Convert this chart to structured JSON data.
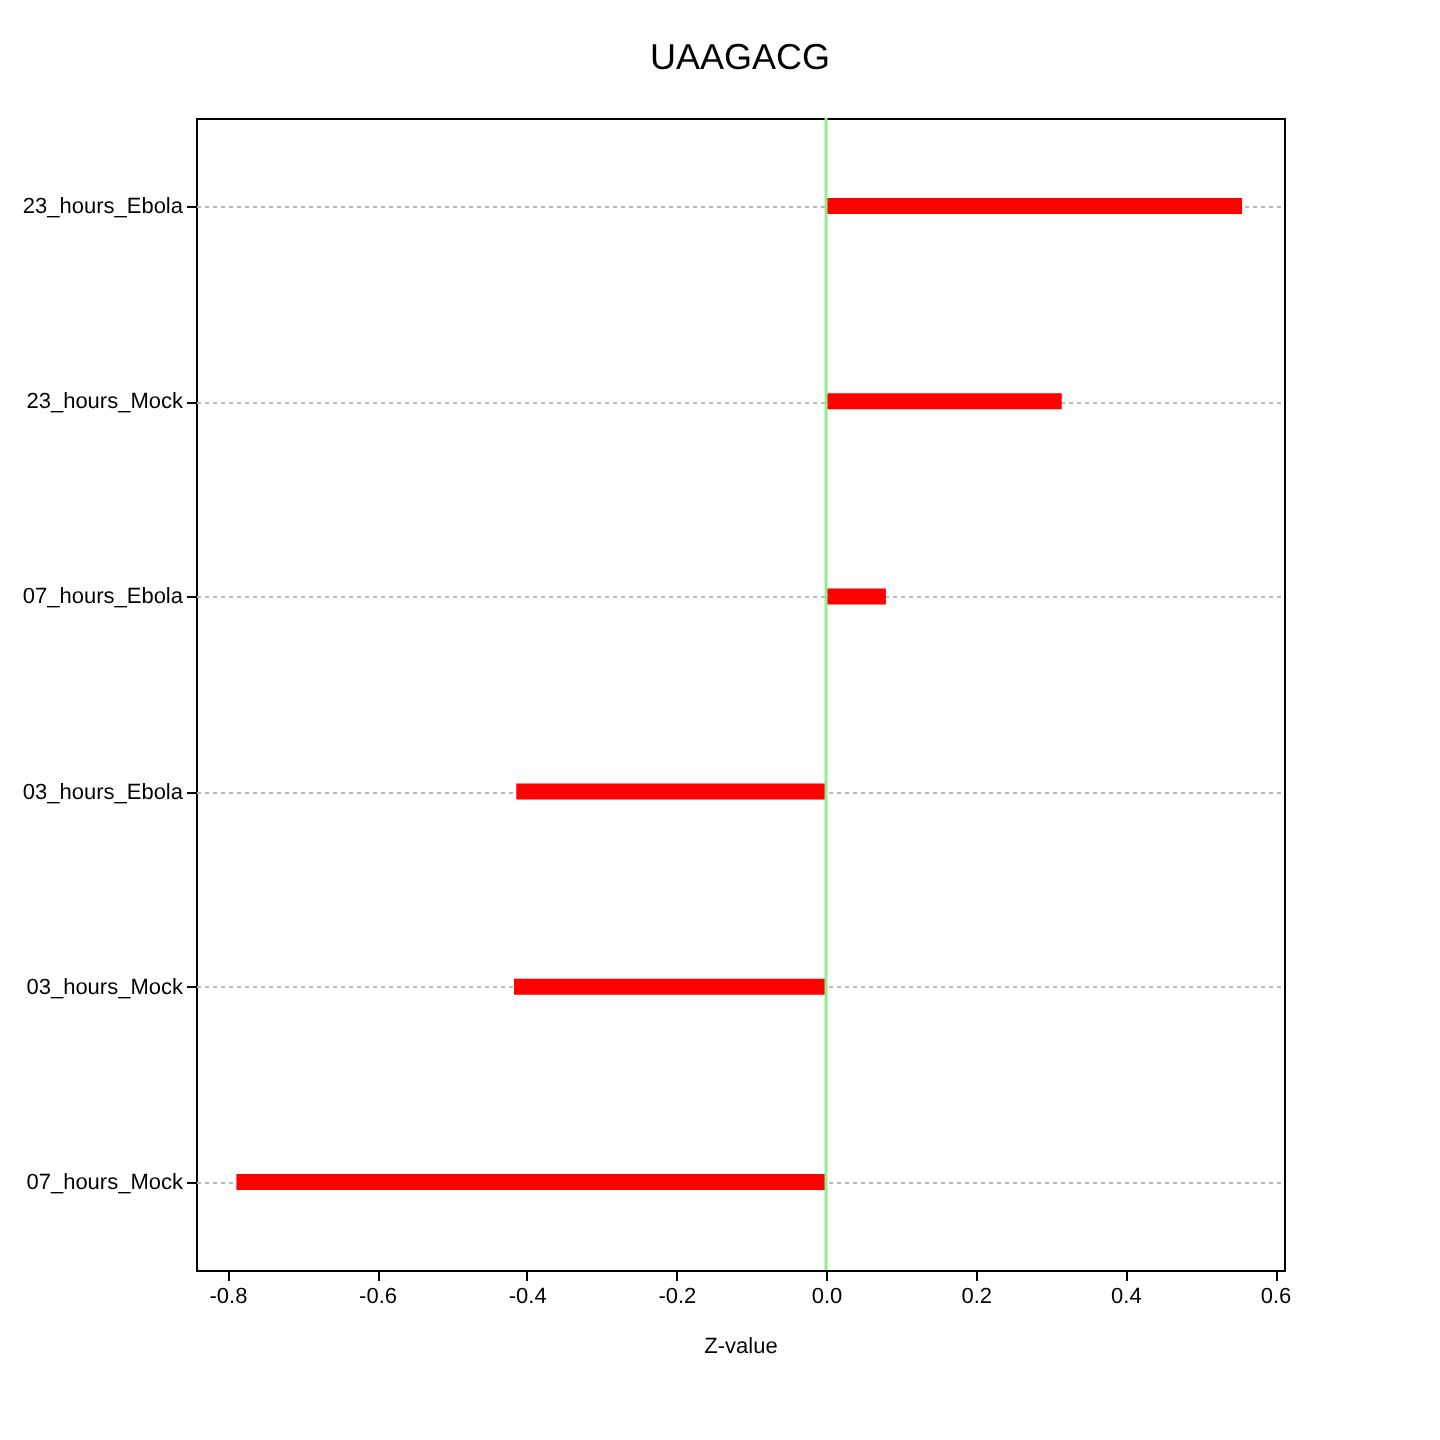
{
  "chart_data": {
    "type": "bar",
    "orientation": "horizontal",
    "title": "UAAGACG",
    "xlabel": "Z-value",
    "categories": [
      "23_hours_Ebola",
      "23_hours_Mock",
      "07_hours_Ebola",
      "03_hours_Ebola",
      "03_hours_Mock",
      "07_hours_Mock"
    ],
    "values": [
      0.556,
      0.315,
      0.08,
      -0.414,
      -0.417,
      -0.788
    ],
    "color": "#ff0000",
    "xlim": [
      -0.842,
      0.612
    ],
    "xticks": [
      -0.8,
      -0.6,
      -0.4,
      -0.2,
      {
        "value": 0,
        "label": "0.0"
      },
      0.2,
      0.4,
      0.6
    ],
    "ref_lines": [
      {
        "axis": "x",
        "value": 0,
        "color": "#90ee90"
      }
    ],
    "grid": "y"
  }
}
